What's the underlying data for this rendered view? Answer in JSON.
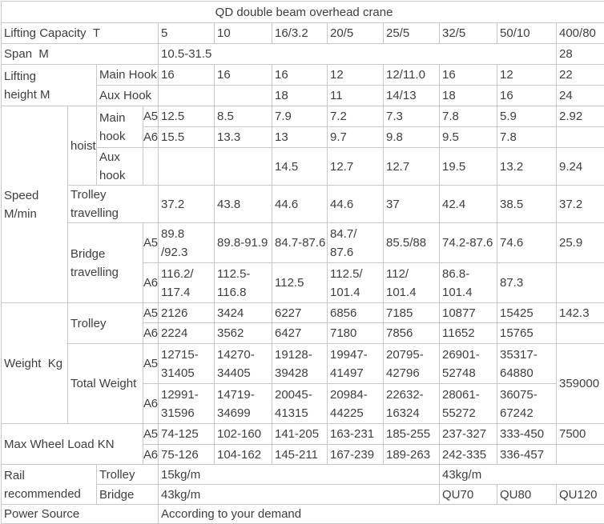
{
  "title": "QD double beam overhead crane",
  "colors": {
    "text": "#3e3e3e",
    "border": "#c8c8c8",
    "background": "#ffffff"
  },
  "table": {
    "rows": [
      {
        "name": "title-row",
        "cells": [
          {
            "t": "QD double beam overhead crane",
            "n": "crane-title",
            "cs": 12,
            "align": "center"
          }
        ]
      },
      {
        "name": "lifting-capacity-row",
        "cells": [
          {
            "t": "Lifting Capacity  T",
            "n": "lifting-capacity-label",
            "cs": 4
          },
          {
            "t": "5"
          },
          {
            "t": "10"
          },
          {
            "t": "16/3.2"
          },
          {
            "t": "20/5"
          },
          {
            "t": "25/5"
          },
          {
            "t": "32/5"
          },
          {
            "t": "50/10"
          },
          {
            "t": "400/80"
          }
        ]
      },
      {
        "name": "span-row",
        "cells": [
          {
            "t": "Span  M",
            "n": "span-label",
            "cs": 4
          },
          {
            "t": "10.5-31.5",
            "cs": 7
          },
          {
            "t": "28"
          }
        ]
      },
      {
        "name": "lifting-height-main-row",
        "cells": [
          {
            "t": "Lifting\nheight M",
            "n": "lifting-height-label",
            "cs": 2,
            "rs": 2
          },
          {
            "t": "Main Hook",
            "n": "main-hook-label",
            "cs": 2
          },
          {
            "t": "16"
          },
          {
            "t": "16"
          },
          {
            "t": "16"
          },
          {
            "t": "12"
          },
          {
            "t": "12/11.0"
          },
          {
            "t": "16"
          },
          {
            "t": "12"
          },
          {
            "t": "22"
          }
        ]
      },
      {
        "name": "lifting-height-aux-row",
        "cells": [
          {
            "t": "Aux Hook",
            "n": "aux-hook-label",
            "cs": 2
          },
          {
            "t": ""
          },
          {
            "t": ""
          },
          {
            "t": "18"
          },
          {
            "t": "11"
          },
          {
            "t": "14/13"
          },
          {
            "t": "18"
          },
          {
            "t": "16"
          },
          {
            "t": "24"
          }
        ]
      },
      {
        "name": "speed-hoist-main-a5-row",
        "cells": [
          {
            "t": "Speed\nM/min",
            "n": "speed-label",
            "rs": 6
          },
          {
            "t": "hoist",
            "n": "hoist-label",
            "rs": 3
          },
          {
            "t": "Main\nhook",
            "n": "hoist-main-hook-label",
            "rs": 2
          },
          {
            "t": "A5",
            "n": "class-a5-label"
          },
          {
            "t": "12.5"
          },
          {
            "t": "8.5"
          },
          {
            "t": "7.9"
          },
          {
            "t": "7.2"
          },
          {
            "t": "7.3"
          },
          {
            "t": "7.8"
          },
          {
            "t": "5.9"
          },
          {
            "t": "2.92"
          }
        ]
      },
      {
        "name": "speed-hoist-main-a6-row",
        "cells": [
          {
            "t": "A6",
            "n": "class-a6-label"
          },
          {
            "t": "15.5"
          },
          {
            "t": "13.3"
          },
          {
            "t": "13"
          },
          {
            "t": "9.7"
          },
          {
            "t": "9.8"
          },
          {
            "t": "9.5"
          },
          {
            "t": "7.8"
          },
          {
            "t": ""
          }
        ]
      },
      {
        "name": "speed-hoist-aux-row",
        "cells": [
          {
            "t": "Aux\nhook",
            "n": "hoist-aux-hook-label"
          },
          {
            "t": "",
            "n": "class-empty-label"
          },
          {
            "t": ""
          },
          {
            "t": ""
          },
          {
            "t": "14.5"
          },
          {
            "t": "12.7"
          },
          {
            "t": "12.7"
          },
          {
            "t": "19.5"
          },
          {
            "t": "13.2"
          },
          {
            "t": "9.24"
          }
        ]
      },
      {
        "name": "speed-trolley-travelling-row",
        "cells": [
          {
            "t": "Trolley\ntravelling",
            "n": "trolley-travelling-label",
            "cs": 3
          },
          {
            "t": "37.2"
          },
          {
            "t": "43.8"
          },
          {
            "t": "44.6"
          },
          {
            "t": "44.6"
          },
          {
            "t": "37"
          },
          {
            "t": "42.4"
          },
          {
            "t": "38.5"
          },
          {
            "t": "37.2"
          }
        ]
      },
      {
        "name": "speed-bridge-a5-row",
        "cells": [
          {
            "t": "Bridge\ntravelling",
            "n": "bridge-travelling-label",
            "cs": 2,
            "rs": 2
          },
          {
            "t": "A5",
            "n": "class-a5-label"
          },
          {
            "t": "89.8\n/92.3"
          },
          {
            "t": "89.8-91.9"
          },
          {
            "t": "84.7-87.6"
          },
          {
            "t": "84.7/\n87.6"
          },
          {
            "t": "85.5/88"
          },
          {
            "t": "74.2-87.6"
          },
          {
            "t": "74.6"
          },
          {
            "t": "25.9"
          }
        ]
      },
      {
        "name": "speed-bridge-a6-row",
        "cells": [
          {
            "t": "A6",
            "n": "class-a6-label"
          },
          {
            "t": "116.2/\n117.4"
          },
          {
            "t": "112.5-\n116.8"
          },
          {
            "t": "112.5"
          },
          {
            "t": "112.5/\n101.4"
          },
          {
            "t": "112/\n101.4"
          },
          {
            "t": "86.8-\n101.4"
          },
          {
            "t": "87.3"
          },
          {
            "t": ""
          }
        ]
      },
      {
        "name": "weight-trolley-a5-row",
        "cells": [
          {
            "t": "Weight  Kg",
            "n": "weight-label",
            "rs": 4
          },
          {
            "t": "Trolley",
            "n": "trolley-weight-label",
            "cs": 2,
            "rs": 2
          },
          {
            "t": "A5",
            "n": "class-a5-label"
          },
          {
            "t": "2126"
          },
          {
            "t": "3424"
          },
          {
            "t": "6227"
          },
          {
            "t": "6856"
          },
          {
            "t": "7185"
          },
          {
            "t": "10877"
          },
          {
            "t": "15425"
          },
          {
            "t": "142.3"
          }
        ]
      },
      {
        "name": "weight-trolley-a6-row",
        "cells": [
          {
            "t": "A6",
            "n": "class-a6-label"
          },
          {
            "t": "2224"
          },
          {
            "t": "3562"
          },
          {
            "t": "6427"
          },
          {
            "t": "7180"
          },
          {
            "t": "7856"
          },
          {
            "t": "11652"
          },
          {
            "t": "15765"
          },
          {
            "t": ""
          }
        ]
      },
      {
        "name": "weight-total-a5-row",
        "cells": [
          {
            "t": "Total Weight",
            "n": "total-weight-label",
            "cs": 2,
            "rs": 2
          },
          {
            "t": "A5",
            "n": "class-a5-label"
          },
          {
            "t": "12715-\n31405"
          },
          {
            "t": "14270-\n34405"
          },
          {
            "t": "19128-\n39428"
          },
          {
            "t": "19947-\n41497"
          },
          {
            "t": "20795-\n42796"
          },
          {
            "t": "26901-\n52748"
          },
          {
            "t": "35317-\n64880"
          },
          {
            "t": "359000",
            "rs": 2
          }
        ]
      },
      {
        "name": "weight-total-a6-row",
        "cells": [
          {
            "t": "A6",
            "n": "class-a6-label"
          },
          {
            "t": "12991-\n31596"
          },
          {
            "t": "14719-\n34699"
          },
          {
            "t": "20045-\n41315"
          },
          {
            "t": "20984-\n44225"
          },
          {
            "t": "22632-\n16324"
          },
          {
            "t": "28061-\n55272"
          },
          {
            "t": "36075-\n67242"
          }
        ]
      },
      {
        "name": "max-wheel-a5-row",
        "cells": [
          {
            "t": "Max Wheel Load KN",
            "n": "max-wheel-load-label",
            "cs": 3,
            "rs": 2
          },
          {
            "t": "A5",
            "n": "class-a5-label"
          },
          {
            "t": "74-125"
          },
          {
            "t": "102-160"
          },
          {
            "t": "141-205"
          },
          {
            "t": "163-231"
          },
          {
            "t": "185-255"
          },
          {
            "t": "237-327"
          },
          {
            "t": "333-450"
          },
          {
            "t": "7500"
          }
        ]
      },
      {
        "name": "max-wheel-a6-row",
        "cells": [
          {
            "t": "A6",
            "n": "class-a6-label"
          },
          {
            "t": "75-126"
          },
          {
            "t": "104-162"
          },
          {
            "t": "145-211"
          },
          {
            "t": "167-239"
          },
          {
            "t": "189-263"
          },
          {
            "t": "242-335"
          },
          {
            "t": "336-457"
          },
          {
            "t": ""
          }
        ]
      },
      {
        "name": "rail-trolley-row",
        "cells": [
          {
            "t": "Rail\nrecommended",
            "n": "rail-recommended-label",
            "cs": 2,
            "rs": 2
          },
          {
            "t": "Trolley",
            "n": "rail-trolley-label",
            "cs": 2
          },
          {
            "t": "15kg/m",
            "cs": 5
          },
          {
            "t": "43kg/m",
            "cs": 3
          }
        ]
      },
      {
        "name": "rail-bridge-row",
        "cells": [
          {
            "t": "Bridge",
            "n": "rail-bridge-label",
            "cs": 2
          },
          {
            "t": "43kg/m",
            "cs": 5
          },
          {
            "t": "QU70"
          },
          {
            "t": "QU80"
          },
          {
            "t": "QU120"
          }
        ]
      },
      {
        "name": "power-source-row",
        "cells": [
          {
            "t": "Power Source",
            "n": "power-source-label",
            "cs": 4
          },
          {
            "t": "According to your demand",
            "cs": 8
          }
        ]
      }
    ]
  }
}
